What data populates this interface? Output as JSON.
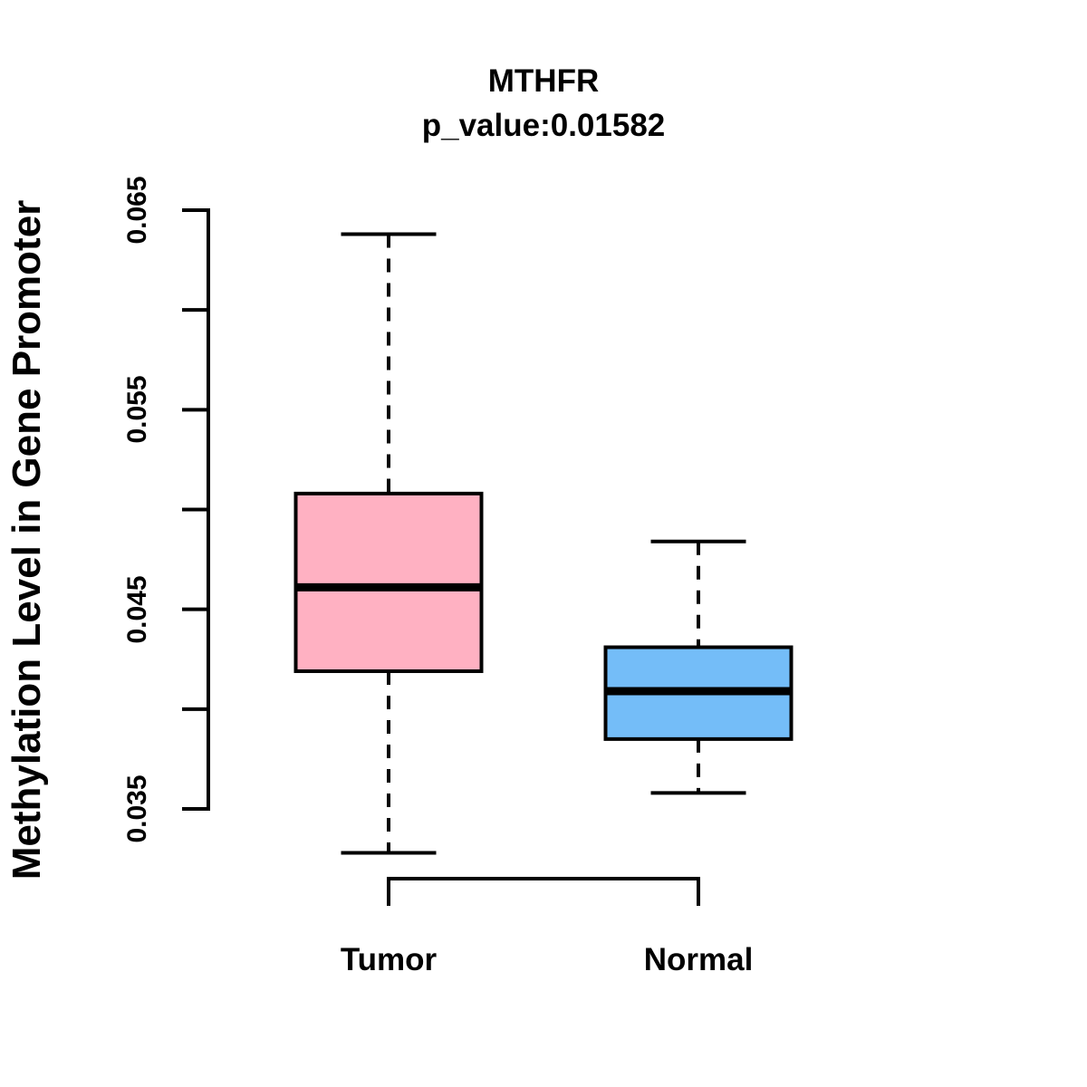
{
  "chart_data": {
    "type": "boxplot",
    "title": "MTHFR",
    "subtitle": "p_value:0.01582",
    "ylabel": "Methylation Level in Gene Promoter",
    "ylim": [
      0.035,
      0.065
    ],
    "y_ticks": [
      0.035,
      0.04,
      0.045,
      0.05,
      0.055,
      0.06,
      0.065
    ],
    "y_tick_labeled": [
      {
        "value": 0.035,
        "label": "0.035"
      },
      {
        "value": 0.045,
        "label": "0.045"
      },
      {
        "value": 0.055,
        "label": "0.055"
      },
      {
        "value": 0.065,
        "label": "0.065"
      }
    ],
    "grid": false,
    "legend": "none",
    "groups": [
      {
        "label": "Tumor",
        "color": "#FFB1C2",
        "whisker_low": 0.0328,
        "q1": 0.0419,
        "median": 0.0461,
        "q3": 0.0508,
        "whisker_high": 0.0638
      },
      {
        "label": "Normal",
        "color": "#74BDF8",
        "whisker_low": 0.0358,
        "q1": 0.0385,
        "median": 0.0409,
        "q3": 0.0431,
        "whisker_high": 0.0484
      }
    ],
    "colors": {
      "stroke": "#000000",
      "background": "#FFFFFF"
    }
  }
}
